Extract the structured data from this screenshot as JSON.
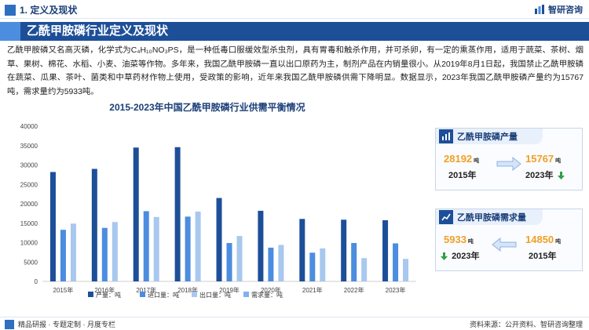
{
  "header": {
    "section": "1. 定义及现状",
    "brand": "智研咨询"
  },
  "title": "乙酰甲胺磷行业定义及现状",
  "intro": "乙酰甲胺磷又名高灭磷，化学式为C₄H₁₀NO₃PS，是一种低毒口服缓效型杀虫剂，具有胃毒和触杀作用，并可杀卵，有一定的熏蒸作用，适用于蔬菜、茶树、烟草、果树、棉花、水稻、小麦、油菜等作物。多年来，我国乙酰甲胺磷一直以出口原药为主，制剂产品在内销量很小。从2019年8月1日起，我国禁止乙酰甲胺磷在蔬菜、瓜果、茶叶、菌类和中草药材作物上使用，受政策的影响，近年来我国乙酰甲胺磷供需下降明显。数据显示，2023年我国乙酰甲胺磷产量约为15767吨，需求量约为5933吨。",
  "chart_data": {
    "type": "bar",
    "title": "2015-2023年中国乙酰甲胺磷行业供需平衡情况",
    "categories": [
      "2015年",
      "2016年",
      "2017年",
      "2018年",
      "2019年",
      "2020年",
      "2021年",
      "2022年",
      "2023年"
    ],
    "series": [
      {
        "name": "产量：吨",
        "color": "#1d4f99",
        "values": [
          28192,
          29000,
          34500,
          34600,
          21500,
          18200,
          16100,
          15900,
          15767
        ]
      },
      {
        "name": "进口量：吨",
        "color": "#4c8ddf",
        "values": [
          13300,
          13800,
          18100,
          16700,
          9900,
          8700,
          7400,
          9900,
          9800
        ]
      },
      {
        "name": "出口量：吨",
        "color": "#a8c8ee",
        "values": [
          14900,
          15300,
          16600,
          18000,
          11700,
          9400,
          8500,
          6000,
          5800
        ]
      },
      {
        "name": "需求量：吨",
        "color": "#7fb2ec",
        "values": [
          null,
          null,
          null,
          null,
          null,
          null,
          null,
          null,
          null
        ]
      }
    ],
    "yticks": [
      "0",
      "5000",
      "10000",
      "15000",
      "20000",
      "25000",
      "30000",
      "35000",
      "40000"
    ],
    "ylim": [
      0,
      40000
    ],
    "grid": false,
    "legend_position": "bottom"
  },
  "panels": {
    "production": {
      "title": "乙酰甲胺磷产量",
      "from_value": "28192",
      "from_unit": "吨",
      "from_year": "2015年",
      "to_value": "15767",
      "to_unit": "吨",
      "to_year": "2023年",
      "trend_color": "#2ea043"
    },
    "demand": {
      "title": "乙酰甲胺磷需求量",
      "left_value": "5933",
      "left_unit": "吨",
      "left_year": "2023年",
      "right_value": "14850",
      "right_unit": "吨",
      "right_year": "2015年",
      "trend_color": "#2ea043"
    }
  },
  "footer": {
    "left": "精品研报 · 专题定制 · 月度专栏",
    "source": "资料来源：公开资料、智研咨询整理"
  },
  "colors": {
    "primary": "#1d4f99",
    "accent": "#4c8ddf",
    "highlight": "#f0a024"
  }
}
